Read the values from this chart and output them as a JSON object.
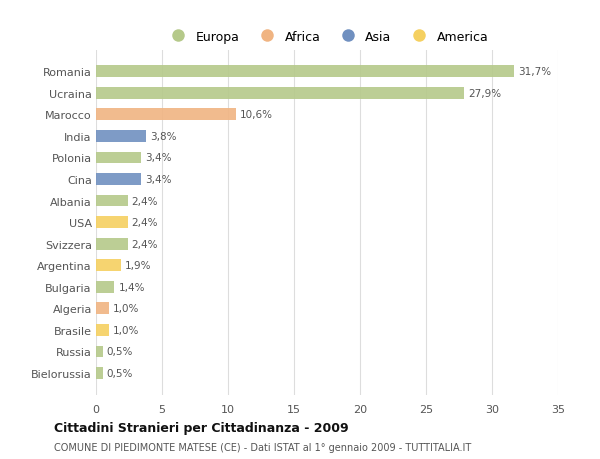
{
  "countries": [
    "Romania",
    "Ucraina",
    "Marocco",
    "India",
    "Polonia",
    "Cina",
    "Albania",
    "USA",
    "Svizzera",
    "Argentina",
    "Bulgaria",
    "Algeria",
    "Brasile",
    "Russia",
    "Bielorussia"
  ],
  "values": [
    31.7,
    27.9,
    10.6,
    3.8,
    3.4,
    3.4,
    2.4,
    2.4,
    2.4,
    1.9,
    1.4,
    1.0,
    1.0,
    0.5,
    0.5
  ],
  "labels": [
    "31,7%",
    "27,9%",
    "10,6%",
    "3,8%",
    "3,4%",
    "3,4%",
    "2,4%",
    "2,4%",
    "2,4%",
    "1,9%",
    "1,4%",
    "1,0%",
    "1,0%",
    "0,5%",
    "0,5%"
  ],
  "continents": [
    "Europa",
    "Europa",
    "Africa",
    "Asia",
    "Europa",
    "Asia",
    "Europa",
    "America",
    "Europa",
    "America",
    "Europa",
    "Africa",
    "America",
    "Europa",
    "Europa"
  ],
  "colors": {
    "Europa": "#b5c98a",
    "Africa": "#f0b482",
    "Asia": "#7090c0",
    "America": "#f5d060"
  },
  "legend_order": [
    "Europa",
    "Africa",
    "Asia",
    "America"
  ],
  "xlim": [
    0,
    35
  ],
  "xticks": [
    0,
    5,
    10,
    15,
    20,
    25,
    30,
    35
  ],
  "title": "Cittadini Stranieri per Cittadinanza - 2009",
  "subtitle": "COMUNE DI PIEDIMONTE MATESE (CE) - Dati ISTAT al 1° gennaio 2009 - TUTTITALIA.IT",
  "background_color": "#ffffff",
  "grid_color": "#dddddd"
}
